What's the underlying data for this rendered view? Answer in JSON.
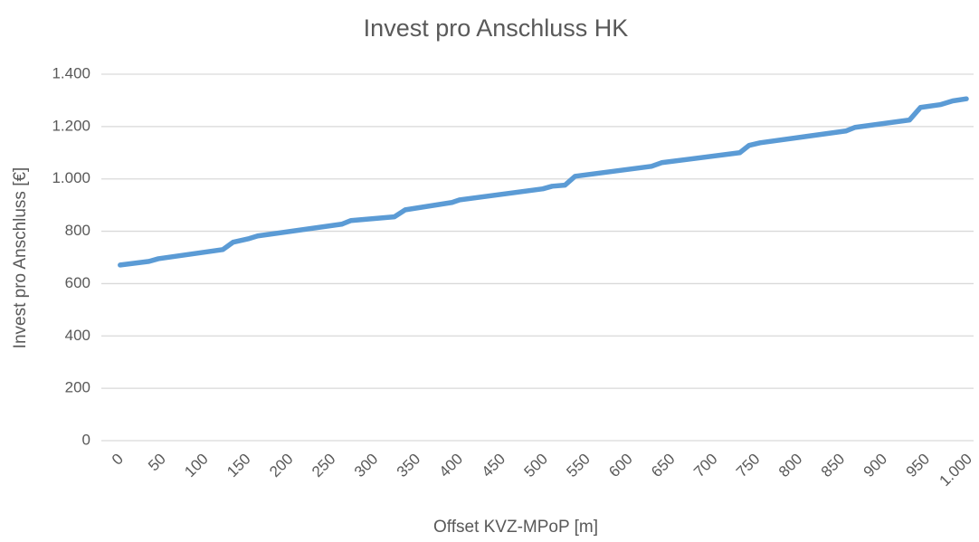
{
  "chart_data": {
    "type": "line",
    "title": "Invest pro Anschluss HK",
    "x_label": "Offset KVZ-MPoP [m]",
    "y_label": "Invest pro Anschluss [€]",
    "x": [
      3,
      37,
      48,
      124,
      136,
      155,
      165,
      264,
      275,
      326,
      339,
      394,
      403,
      501,
      512,
      527,
      539,
      629,
      641,
      733,
      744,
      757,
      858,
      869,
      933,
      946,
      970,
      984,
      1000
    ],
    "series": [
      {
        "name": "Invest pro Anschluss",
        "color": "#5b9bd5",
        "values": [
          671,
          685,
          695,
          730,
          758,
          772,
          782,
          827,
          841,
          855,
          882,
          910,
          920,
          962,
          972,
          976,
          1010,
          1048,
          1062,
          1100,
          1128,
          1138,
          1183,
          1197,
          1225,
          1273,
          1284,
          1298,
          1306
        ]
      }
    ],
    "xlim": [
      0,
      1000
    ],
    "xticks": [
      0,
      50,
      100,
      150,
      200,
      250,
      300,
      350,
      400,
      450,
      500,
      550,
      600,
      650,
      700,
      750,
      800,
      850,
      900,
      950,
      {
        "value": 1000,
        "label": "1.000"
      }
    ],
    "ylim": [
      0,
      1400
    ],
    "yticks": [
      0,
      200,
      400,
      600,
      800,
      {
        "value": 1000,
        "label": "1.000"
      },
      {
        "value": 1200,
        "label": "1.200"
      },
      {
        "value": 1400,
        "label": "1.400"
      }
    ],
    "grid": true
  }
}
